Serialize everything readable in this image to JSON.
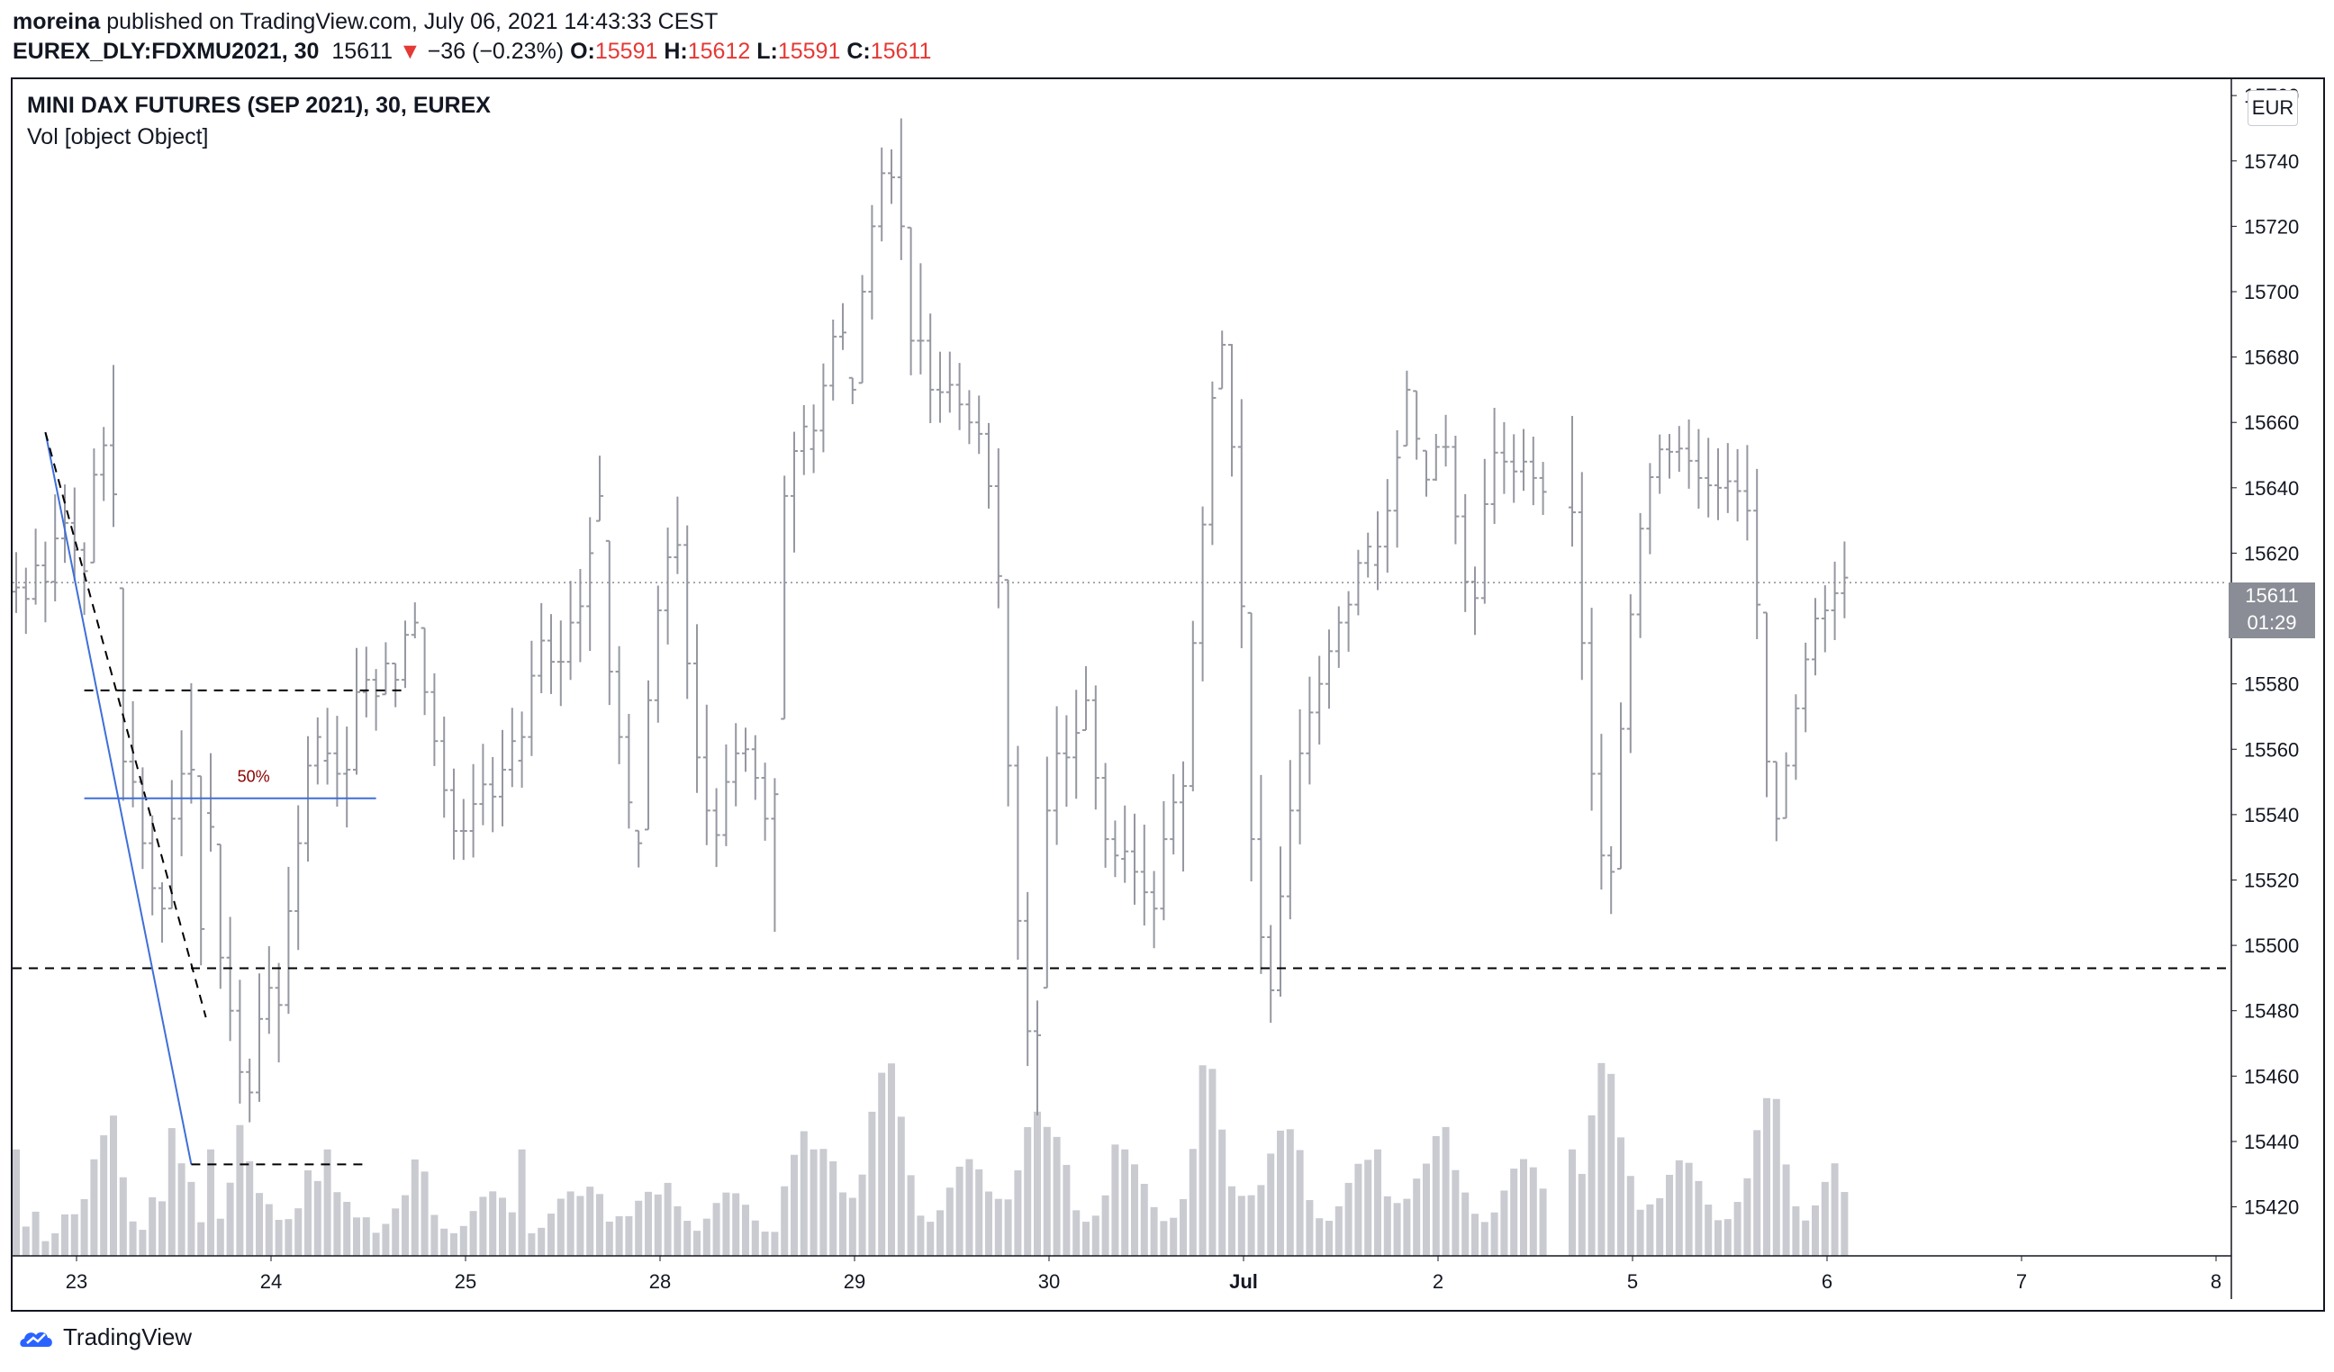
{
  "header": {
    "user": "moreina",
    "published": "published on TradingView.com, July 06, 2021 14:43:33 CEST",
    "symbol": "EUREX_DLY:FDXMU2021, 30",
    "last": "15611",
    "arrow": "▼",
    "change": "−36 (−0.23%)",
    "o_label": "O:",
    "o_value": "15591",
    "h_label": "H:",
    "h_value": "15612",
    "l_label": "L:",
    "l_value": "15591",
    "c_label": "C:",
    "c_value": "15611"
  },
  "legend": {
    "title": "MINI DAX FUTURES (SEP 2021), 30, EUREX",
    "volume": "Vol [object Object]"
  },
  "currency": "EUR",
  "price_tag": {
    "value": "15611",
    "countdown": "01:29"
  },
  "footer": {
    "brand": "TradingView"
  },
  "colors": {
    "bar": "#9598a1",
    "volume": "#c9cbd1",
    "fib": "#3f6fd8",
    "dashed": "#000000",
    "fib_label": "#8b0000",
    "red": "#e53935"
  },
  "chart_data": {
    "type": "ohlc_bar",
    "ylim": [
      15405,
      15765
    ],
    "y_ticks": [
      15420,
      15440,
      15460,
      15480,
      15500,
      15520,
      15540,
      15560,
      15580,
      15600,
      15620,
      15640,
      15660,
      15680,
      15700,
      15720,
      15740,
      15760
    ],
    "x_ticks": [
      {
        "label": "23",
        "bar": 2.5
      },
      {
        "label": "24",
        "bar": 22.5
      },
      {
        "label": "25",
        "bar": 42.5
      },
      {
        "label": "28",
        "bar": 62.5
      },
      {
        "label": "29",
        "bar": 82.5
      },
      {
        "label": "30",
        "bar": 102.5
      },
      {
        "label": "Jul",
        "bar": 122.5
      },
      {
        "label": "2",
        "bar": 142.5
      },
      {
        "label": "5",
        "bar": 162.5
      },
      {
        "label": "6",
        "bar": 182.5
      },
      {
        "label": "7",
        "bar": 202.5
      },
      {
        "label": "8",
        "bar": 222.5
      }
    ],
    "segments": [
      {
        "start": 0,
        "points": [
          [
            15611,
            1
          ],
          [
            15605,
            1
          ],
          [
            15615,
            2
          ],
          [
            15610,
            1
          ],
          [
            15620,
            2
          ],
          [
            15628,
            3
          ],
          [
            15625,
            2
          ],
          [
            15612,
            2
          ],
          [
            15635,
            3
          ],
          [
            15648,
            4
          ],
          [
            15655,
            6
          ],
          [
            15580,
            5
          ],
          [
            15560,
            3
          ],
          [
            15540,
            2
          ],
          [
            15525,
            3
          ],
          [
            15510,
            2
          ],
          [
            15530,
            4
          ],
          [
            15545,
            3
          ],
          [
            15560,
            3
          ],
          [
            15520,
            2
          ],
          [
            15500,
            2
          ],
          [
            15540,
            3
          ]
        ]
      },
      {
        "start": 20,
        "points": [
          [
            15545,
            2
          ],
          [
            15510,
            3
          ],
          [
            15490,
            4
          ],
          [
            15470,
            5
          ],
          [
            15455,
            3
          ],
          [
            15470,
            2
          ],
          [
            15485,
            2
          ],
          [
            15478,
            2
          ],
          [
            15500,
            3
          ],
          [
            15520,
            4
          ],
          [
            15545,
            5
          ],
          [
            15560,
            3
          ]
        ]
      },
      {
        "start": 32,
        "points": [
          [
            15560,
            3
          ],
          [
            15555,
            2
          ],
          [
            15550,
            2
          ],
          [
            15570,
            2
          ],
          [
            15580,
            3
          ],
          [
            15575,
            2
          ],
          [
            15585,
            2
          ],
          [
            15580,
            2
          ],
          [
            15590,
            2
          ],
          [
            15600,
            3
          ],
          [
            15585,
            3
          ],
          [
            15570,
            2
          ],
          [
            15555,
            2
          ],
          [
            15540,
            2
          ],
          [
            15535,
            2
          ],
          [
            15540,
            2
          ],
          [
            15548,
            2
          ],
          [
            15545,
            2
          ],
          [
            15550,
            2
          ],
          [
            15560,
            2
          ]
        ]
      },
      {
        "start": 52,
        "points": [
          [
            15560,
            2
          ],
          [
            15575,
            2
          ],
          [
            15590,
            2
          ],
          [
            15588,
            2
          ],
          [
            15585,
            2
          ],
          [
            15595,
            2
          ],
          [
            15600,
            2
          ],
          [
            15610,
            3
          ],
          [
            15640,
            4
          ],
          [
            15600,
            3
          ],
          [
            15575,
            3
          ],
          [
            15555,
            2
          ],
          [
            15530,
            2
          ],
          [
            15560,
            2
          ],
          [
            15590,
            2
          ],
          [
            15610,
            3
          ],
          [
            15625,
            3
          ],
          [
            15600,
            3
          ],
          [
            15570,
            2
          ],
          [
            15550,
            2
          ],
          [
            15535,
            2
          ],
          [
            15545,
            2
          ],
          [
            15555,
            2
          ],
          [
            15560,
            2
          ],
          [
            15555,
            2
          ],
          [
            15545,
            2
          ],
          [
            15530,
            2
          ],
          [
            15610,
            4
          ],
          [
            15640,
            4
          ],
          [
            15655,
            4
          ]
        ]
      },
      {
        "start": 82,
        "points": [
          [
            15655,
            4
          ],
          [
            15665,
            4
          ],
          [
            15680,
            5
          ],
          [
            15690,
            5
          ],
          [
            15670,
            5
          ],
          [
            15690,
            5
          ],
          [
            15710,
            6
          ],
          [
            15730,
            6
          ],
          [
            15735,
            6
          ],
          [
            15730,
            5
          ],
          [
            15695,
            4
          ],
          [
            15690,
            3
          ],
          [
            15675,
            3
          ],
          [
            15670,
            3
          ],
          [
            15672,
            3
          ],
          [
            15668,
            3
          ],
          [
            15662,
            3
          ],
          [
            15660,
            3
          ],
          [
            15648,
            3
          ],
          [
            15630,
            4
          ],
          [
            15580,
            5
          ],
          [
            15530,
            6
          ],
          [
            15490,
            6
          ],
          [
            15465,
            5
          ],
          [
            15520,
            4
          ],
          [
            15550,
            4
          ],
          [
            15555,
            4
          ],
          [
            15560,
            3
          ],
          [
            15575,
            3
          ],
          [
            15560,
            3
          ],
          [
            15540,
            3
          ],
          [
            15530,
            4
          ]
        ]
      },
      {
        "start": 114,
        "points": [
          [
            15530,
            4
          ],
          [
            15525,
            3
          ],
          [
            15520,
            3
          ],
          [
            15510,
            3
          ],
          [
            15525,
            3
          ],
          [
            15540,
            3
          ],
          [
            15540,
            3
          ],
          [
            15575,
            4
          ],
          [
            15610,
            6
          ],
          [
            15650,
            6
          ],
          [
            15680,
            5
          ],
          [
            15665,
            4
          ],
          [
            15630,
            5
          ],
          [
            15560,
            5
          ],
          [
            15520,
            4
          ],
          [
            15490,
            4
          ],
          [
            15505,
            4
          ],
          [
            15530,
            4
          ],
          [
            15550,
            4
          ],
          [
            15565,
            3
          ],
          [
            15575,
            3
          ],
          [
            15585,
            3
          ],
          [
            15595,
            3
          ],
          [
            15600,
            3
          ],
          [
            15612,
            3
          ],
          [
            15620,
            3
          ]
        ]
      },
      {
        "start": 140,
        "points": [
          [
            15620,
            3
          ],
          [
            15628,
            3
          ],
          [
            15640,
            4
          ],
          [
            15665,
            5
          ],
          [
            15660,
            5
          ],
          [
            15645,
            4
          ],
          [
            15650,
            4
          ],
          [
            15655,
            4
          ],
          [
            15640,
            3
          ],
          [
            15620,
            3
          ],
          [
            15605,
            3
          ],
          [
            15625,
            3
          ],
          [
            15645,
            3
          ],
          [
            15648,
            3
          ],
          [
            15645,
            3
          ],
          [
            15648,
            3
          ],
          [
            15645,
            3
          ],
          [
            15640,
            3
          ]
        ]
      },
      {
        "start": 160,
        "points": [
          [
            15640,
            3
          ],
          [
            15610,
            4
          ],
          [
            15570,
            5
          ],
          [
            15540,
            6
          ],
          [
            15520,
            6
          ],
          [
            15550,
            5
          ],
          [
            15585,
            5
          ],
          [
            15615,
            4
          ],
          [
            15635,
            4
          ],
          [
            15648,
            3
          ],
          [
            15650,
            3
          ],
          [
            15652,
            3
          ],
          [
            15650,
            3
          ],
          [
            15645,
            3
          ],
          [
            15642,
            3
          ],
          [
            15640,
            3
          ],
          [
            15642,
            3
          ],
          [
            15640,
            3
          ],
          [
            15638,
            3
          ],
          [
            15620,
            4
          ],
          [
            15575,
            5
          ],
          [
            15545,
            6
          ],
          [
            15550,
            5
          ],
          [
            15565,
            4
          ],
          [
            15580,
            3
          ],
          [
            15595,
            3
          ],
          [
            15600,
            3
          ],
          [
            15605,
            3
          ],
          [
            15611,
            2
          ]
        ]
      }
    ],
    "fib": {
      "anchor_high": {
        "bar": 3,
        "price": 15657
      },
      "anchor_low": {
        "bar": 18,
        "price": 15433
      },
      "level_top": {
        "price": 15578,
        "from_bar": 7,
        "to_bar": 40
      },
      "level_50": {
        "price": 15545,
        "from_bar": 7,
        "to_bar": 37,
        "label": "50%"
      },
      "level_low": {
        "price": 15433,
        "from_bar": 18,
        "to_bar": 36
      },
      "dashed_diag_to": {
        "bar": 19.5,
        "price": 15478
      }
    },
    "support_line": {
      "price": 15493
    },
    "last_price_line": {
      "price": 15611
    }
  }
}
